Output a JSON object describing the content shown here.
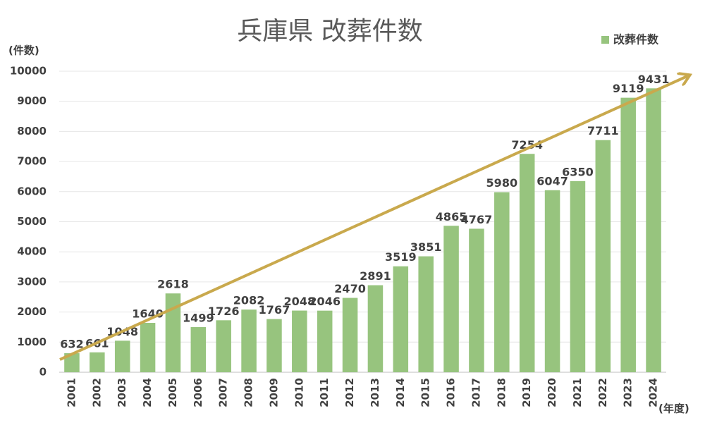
{
  "chart_data": {
    "type": "bar",
    "title": "兵庫県 改葬件数",
    "y_label": "(件数)",
    "x_label": "(年度)",
    "categories": [
      "2001",
      "2002",
      "2003",
      "2004",
      "2005",
      "2006",
      "2007",
      "2008",
      "2009",
      "2010",
      "2011",
      "2012",
      "2013",
      "2014",
      "2015",
      "2016",
      "2017",
      "2018",
      "2019",
      "2020",
      "2021",
      "2022",
      "2023",
      "2024"
    ],
    "series": [
      {
        "name": "改葬件数",
        "color": "#97c47e",
        "values": [
          632,
          661,
          1048,
          1640,
          2618,
          1499,
          1726,
          2082,
          1767,
          2048,
          2046,
          2470,
          2891,
          3519,
          3851,
          4865,
          4767,
          5980,
          7254,
          6047,
          6350,
          7711,
          9119,
          9431
        ]
      }
    ],
    "ylim": [
      0,
      10000
    ],
    "yticks": [
      0,
      1000,
      2000,
      3000,
      4000,
      5000,
      6000,
      7000,
      8000,
      9000,
      10000
    ],
    "grid": true,
    "legend": "top-right"
  }
}
